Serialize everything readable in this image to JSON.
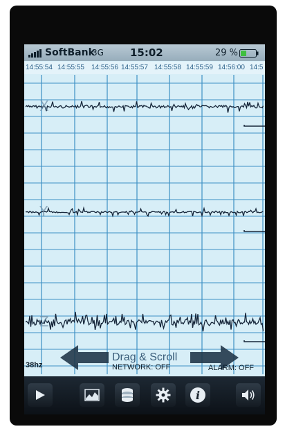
{
  "status_bar": {
    "carrier": "SoftBank",
    "network_type": "3G",
    "time": "15:02",
    "battery_percent": "29 %",
    "signal_icon": "signal-bars-icon",
    "battery_icon": "battery-icon"
  },
  "timeline": {
    "labels": [
      "14:55:54",
      "14:55:55",
      "14:55:56",
      "14:55:57",
      "14:55:58",
      "14:55:59",
      "14:56:00",
      "14:5"
    ]
  },
  "graph": {
    "axes": [
      {
        "label": "X",
        "baseline_value": 0
      },
      {
        "label": "Y",
        "baseline_value": 0
      },
      {
        "label": "Z",
        "baseline_value": 0
      }
    ],
    "colors": {
      "background": "#d7eef7",
      "grid": "#3d90c4",
      "trace": "#16263a"
    }
  },
  "overlay": {
    "sample_rate": "38hz",
    "drag_hint": "Drag & Scroll",
    "network_status": "NETWORK: OFF",
    "alarm_status": "ALARM: OFF",
    "left_arrow_icon": "left-arrow-icon",
    "right_arrow_icon": "right-arrow-icon"
  },
  "toolbar": {
    "buttons": [
      {
        "name": "play",
        "icon": "play-icon"
      },
      {
        "name": "graph",
        "icon": "chart-icon"
      },
      {
        "name": "database",
        "icon": "database-icon"
      },
      {
        "name": "settings",
        "icon": "gear-icon"
      },
      {
        "name": "info",
        "icon": "info-icon"
      },
      {
        "name": "sound",
        "icon": "speaker-icon"
      }
    ]
  }
}
